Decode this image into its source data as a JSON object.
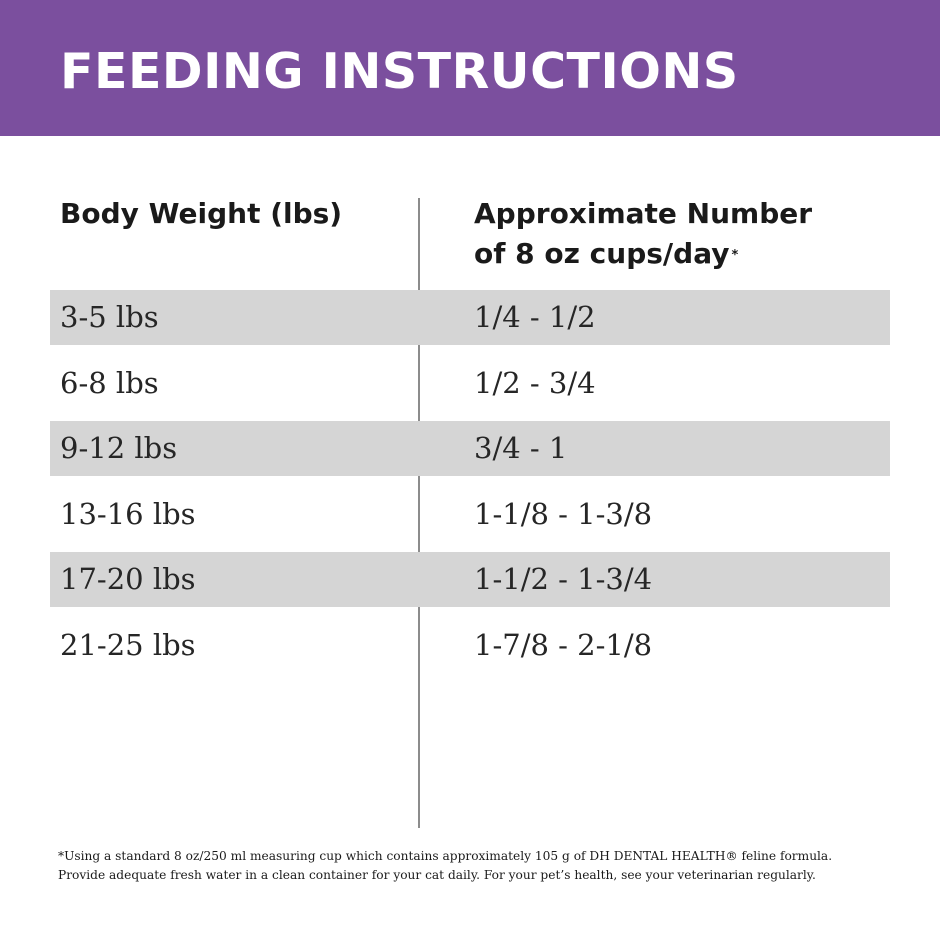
{
  "header": {
    "title": "FEEDING INSTRUCTIONS",
    "background_color": "#7b4f9e"
  },
  "table": {
    "columns": {
      "weight_header": "Body Weight (lbs)",
      "cups_header_line1": "Approximate Number",
      "cups_header_line2": "of 8 oz cups/day",
      "cups_header_mark": "*"
    },
    "rows": [
      {
        "weight": "3-5 lbs",
        "cups": "1/4 - 1/2"
      },
      {
        "weight": "6-8 lbs",
        "cups": "1/2 - 3/4"
      },
      {
        "weight": "9-12 lbs",
        "cups": "3/4 - 1"
      },
      {
        "weight": "13-16 lbs",
        "cups": "1-1/8 - 1-3/8"
      },
      {
        "weight": "17-20 lbs",
        "cups": "1-1/2 - 1-3/4"
      },
      {
        "weight": "21-25 lbs",
        "cups": "1-7/8 - 2-1/8"
      }
    ],
    "shaded_row_color": "#d5d5d5"
  },
  "footnote": {
    "line1": "*Using a standard 8 oz/250 ml measuring cup which contains approximately 105 g of DH DENTAL HEALTH® feline formula.",
    "line2": "Provide adequate fresh water in a clean container for your cat daily. For your pet’s health, see your veterinarian regularly."
  }
}
